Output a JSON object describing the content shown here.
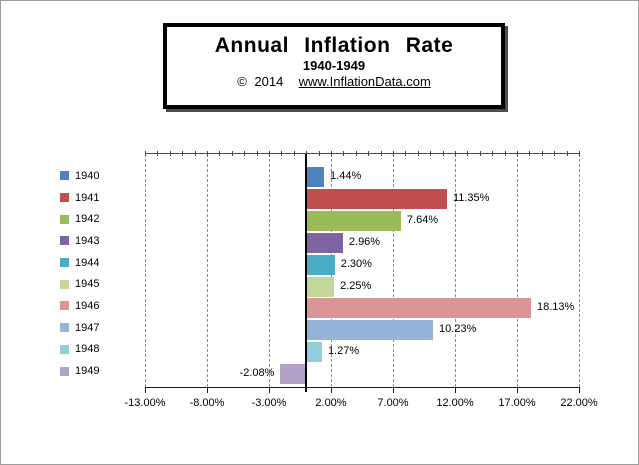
{
  "title_box": {
    "title": "Annual Inflation Rate",
    "subtitle": "1940-1949",
    "copyright_prefix": "© 2014",
    "link_text": "www.InflationData.com"
  },
  "chart_data": {
    "type": "bar",
    "orientation": "horizontal",
    "title": "Annual Inflation Rate",
    "subtitle": "1940-1949",
    "categories": [
      "1940",
      "1941",
      "1942",
      "1943",
      "1944",
      "1945",
      "1946",
      "1947",
      "1948",
      "1949"
    ],
    "values": [
      1.44,
      11.35,
      7.64,
      2.96,
      2.3,
      2.25,
      18.13,
      10.23,
      1.27,
      -2.08
    ],
    "data_labels": [
      "1.44%",
      "11.35%",
      "7.64%",
      "2.96%",
      "2.30%",
      "2.25%",
      "18.13%",
      "10.23%",
      "1.27%",
      "-2.08%"
    ],
    "bar_colors": [
      "#4F81BD",
      "#C0504D",
      "#9BBB59",
      "#8064A2",
      "#4BACC6",
      "#C3D69B",
      "#D99694",
      "#95B3D7",
      "#92CDDC",
      "#B2A2C7"
    ],
    "xlabel": "",
    "ylabel": "",
    "xlim": [
      -13,
      22
    ],
    "x_tick_values": [
      -13,
      -8,
      -3,
      2,
      7,
      12,
      17,
      22
    ],
    "x_tick_labels": [
      "-13.00%",
      "-8.00%",
      "-3.00%",
      "2.00%",
      "7.00%",
      "12.00%",
      "17.00%",
      "22.00%"
    ],
    "minor_tick_step_pct": 1,
    "grid": "vertical-dashed",
    "legend_position": "left",
    "colors": {
      "gridline": "#8c8c8c",
      "axis": "#1a1a1a",
      "zero_line": "#000000",
      "background": "#ffffff"
    }
  }
}
